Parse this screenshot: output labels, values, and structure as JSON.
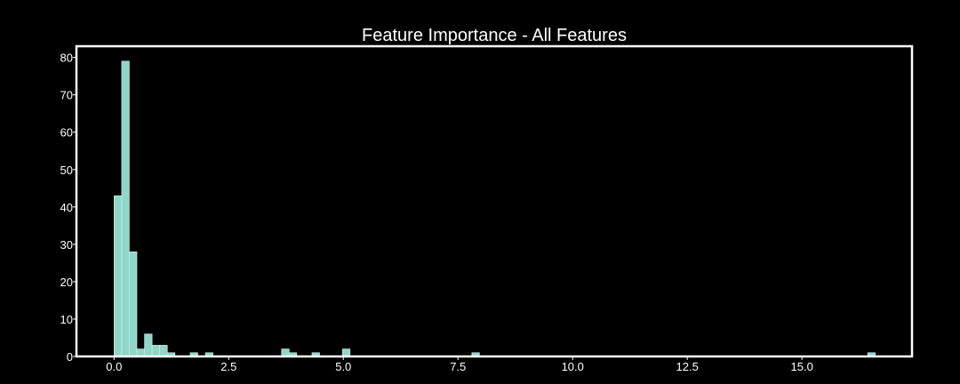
{
  "chart_data": {
    "type": "bar",
    "title": "Feature Importance - All Features",
    "xlabel": "",
    "ylabel": "",
    "xlim": [
      -0.82,
      17.4
    ],
    "ylim": [
      0,
      83
    ],
    "xticks": [
      "0.0",
      "2.5",
      "5.0",
      "7.5",
      "10.0",
      "12.5",
      "15.0"
    ],
    "yticks": [
      "0",
      "10",
      "20",
      "30",
      "40",
      "50",
      "60",
      "70",
      "80"
    ],
    "bin_width": 0.166,
    "x": [
      0.0,
      0.166,
      0.332,
      0.498,
      0.664,
      0.83,
      0.996,
      1.162,
      1.328,
      1.494,
      1.66,
      1.826,
      1.992,
      2.158,
      2.324,
      2.49,
      2.656,
      2.822,
      2.988,
      3.154,
      3.32,
      3.486,
      3.652,
      3.818,
      3.984,
      4.15,
      4.316,
      4.482,
      4.648,
      4.814,
      4.98,
      5.146,
      5.312,
      5.478,
      5.644,
      5.81,
      5.976,
      6.142,
      6.308,
      6.474,
      6.64,
      6.806,
      6.972,
      7.138,
      7.304,
      7.47,
      7.636,
      7.802,
      7.968,
      8.134,
      8.3,
      8.466,
      8.632,
      8.798,
      8.964,
      9.13,
      9.296,
      9.462,
      9.628,
      9.794,
      9.96,
      10.126,
      10.292,
      10.458,
      10.624,
      10.79,
      10.956,
      11.122,
      11.288,
      11.454,
      11.62,
      11.786,
      11.952,
      12.118,
      12.284,
      12.45,
      12.616,
      12.782,
      12.948,
      13.114,
      13.28,
      13.446,
      13.612,
      13.778,
      13.944,
      14.11,
      14.276,
      14.442,
      14.608,
      14.774,
      14.94,
      15.106,
      15.272,
      15.438,
      15.604,
      15.77,
      15.936,
      16.102,
      16.268,
      16.434
    ],
    "values": [
      43,
      79,
      28,
      2,
      6,
      3,
      3,
      1,
      0,
      0,
      1,
      0,
      1,
      0,
      0,
      0,
      0,
      0,
      0,
      0,
      0,
      0,
      2,
      1,
      0,
      0,
      1,
      0,
      0,
      0,
      2,
      0,
      0,
      0,
      0,
      0,
      0,
      0,
      0,
      0,
      0,
      0,
      0,
      0,
      0,
      0,
      0,
      1,
      0,
      0,
      0,
      0,
      0,
      0,
      0,
      0,
      0,
      0,
      0,
      0,
      0,
      0,
      0,
      0,
      0,
      0,
      0,
      0,
      0,
      0,
      0,
      0,
      0,
      0,
      0,
      0,
      0,
      0,
      0,
      0,
      0,
      0,
      0,
      0,
      0,
      0,
      0,
      0,
      0,
      0,
      0,
      0,
      0,
      0,
      0,
      0,
      0,
      0,
      0,
      1
    ],
    "colors": {
      "bar": "#8fd7c8",
      "bar_edge": "#d6f2ec",
      "axes": "#ffffff",
      "background": "#000000"
    }
  }
}
